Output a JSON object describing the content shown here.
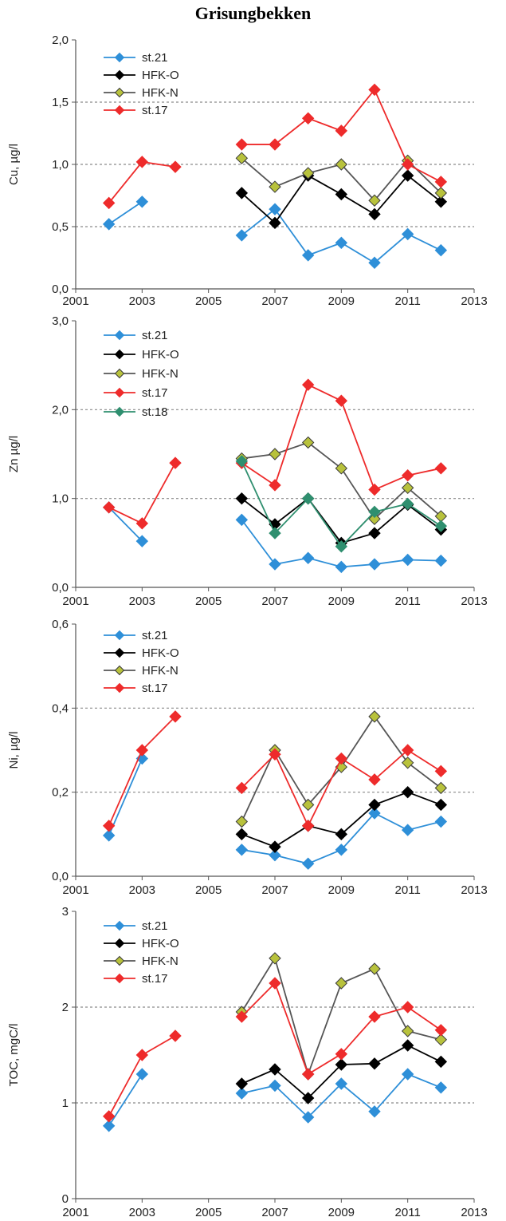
{
  "title": "Grisungbekken",
  "series_styles": {
    "st.21": {
      "color": "#2e8fd8",
      "fill": "#2e8fd8"
    },
    "HFK-O": {
      "color": "#000000",
      "fill": "#000000"
    },
    "HFK-N": {
      "color": "#555555",
      "fill": "#b8c23c"
    },
    "st.17": {
      "color": "#ee2b2b",
      "fill": "#ee2b2b"
    },
    "st.18": {
      "color": "#2f8f6f",
      "fill": "#2f8f6f"
    }
  },
  "chart_data": [
    {
      "type": "line",
      "ylabel": "Cu, µg/l",
      "xlim": [
        2001,
        2013
      ],
      "xticks": [
        2001,
        2003,
        2005,
        2007,
        2009,
        2011,
        2013
      ],
      "ylim": [
        0,
        2
      ],
      "yticks": [
        0,
        0.5,
        1,
        1.5,
        2
      ],
      "yticklabels": [
        "0,0",
        "0,5",
        "1,0",
        "1,5",
        "2,0"
      ],
      "gridlines": [
        0.5,
        1.0,
        1.5
      ],
      "legend": [
        "st.21",
        "HFK-O",
        "HFK-N",
        "st.17"
      ],
      "series": [
        {
          "name": "st.21",
          "x": [
            2002,
            2003,
            2006,
            2007,
            2008,
            2009,
            2010,
            2011,
            2012
          ],
          "y": [
            0.52,
            0.7,
            0.43,
            0.64,
            0.27,
            0.37,
            0.21,
            0.44,
            0.31
          ]
        },
        {
          "name": "HFK-O",
          "x": [
            2006,
            2007,
            2008,
            2009,
            2010,
            2011,
            2012
          ],
          "y": [
            0.77,
            0.53,
            0.91,
            0.76,
            0.6,
            0.91,
            0.7
          ]
        },
        {
          "name": "HFK-N",
          "x": [
            2006,
            2007,
            2008,
            2009,
            2010,
            2011,
            2012
          ],
          "y": [
            1.05,
            0.82,
            0.93,
            1.0,
            0.71,
            1.03,
            0.77
          ]
        },
        {
          "name": "st.17",
          "x": [
            2002,
            2003,
            2004,
            2006,
            2007,
            2008,
            2009,
            2010,
            2011,
            2012
          ],
          "y": [
            0.69,
            1.02,
            0.98,
            1.16,
            1.16,
            1.37,
            1.27,
            1.6,
            1.0,
            0.86
          ]
        }
      ]
    },
    {
      "type": "line",
      "ylabel": "Zn µg/l",
      "xlim": [
        2001,
        2013
      ],
      "xticks": [
        2001,
        2003,
        2005,
        2007,
        2009,
        2011,
        2013
      ],
      "ylim": [
        0,
        3
      ],
      "yticks": [
        0,
        1,
        2,
        3
      ],
      "yticklabels": [
        "0,0",
        "1,0",
        "2,0",
        "3,0"
      ],
      "gridlines": [
        1.0,
        2.0
      ],
      "legend": [
        "st.21",
        "HFK-O",
        "HFK-N",
        "st.17",
        "st.18"
      ],
      "series": [
        {
          "name": "st.21",
          "x": [
            2002,
            2003,
            2006,
            2007,
            2008,
            2009,
            2010,
            2011,
            2012
          ],
          "y": [
            0.9,
            0.52,
            0.76,
            0.26,
            0.33,
            0.23,
            0.26,
            0.31,
            0.3
          ]
        },
        {
          "name": "HFK-O",
          "x": [
            2006,
            2007,
            2008,
            2009,
            2010,
            2011,
            2012
          ],
          "y": [
            1.0,
            0.71,
            1.0,
            0.5,
            0.61,
            0.93,
            0.65
          ]
        },
        {
          "name": "HFK-N",
          "x": [
            2006,
            2007,
            2008,
            2009,
            2010,
            2011,
            2012
          ],
          "y": [
            1.45,
            1.5,
            1.63,
            1.34,
            0.77,
            1.12,
            0.8
          ]
        },
        {
          "name": "st.17",
          "x": [
            2002,
            2003,
            2004,
            2006,
            2007,
            2008,
            2009,
            2010,
            2011,
            2012
          ],
          "y": [
            0.9,
            0.72,
            1.4,
            1.4,
            1.15,
            2.28,
            2.1,
            1.1,
            1.26,
            1.34
          ]
        },
        {
          "name": "st.18",
          "x": [
            2006,
            2007,
            2008,
            2009,
            2010,
            2011,
            2012
          ],
          "y": [
            1.42,
            0.61,
            1.0,
            0.46,
            0.85,
            0.94,
            0.69
          ]
        }
      ]
    },
    {
      "type": "line",
      "ylabel": "Ni, µg/l",
      "xlim": [
        2001,
        2013
      ],
      "xticks": [
        2001,
        2003,
        2005,
        2007,
        2009,
        2011,
        2013
      ],
      "ylim": [
        0,
        0.6
      ],
      "yticks": [
        0,
        0.2,
        0.4,
        0.6
      ],
      "yticklabels": [
        "0,0",
        "0,2",
        "0,4",
        "0,6"
      ],
      "gridlines": [
        0.2,
        0.4
      ],
      "legend": [
        "st.21",
        "HFK-O",
        "HFK-N",
        "st.17"
      ],
      "series": [
        {
          "name": "st.21",
          "x": [
            2002,
            2003,
            2006,
            2007,
            2008,
            2009,
            2010,
            2011,
            2012
          ],
          "y": [
            0.097,
            0.28,
            0.063,
            0.05,
            0.03,
            0.063,
            0.15,
            0.11,
            0.13
          ]
        },
        {
          "name": "HFK-O",
          "x": [
            2006,
            2007,
            2008,
            2009,
            2010,
            2011,
            2012
          ],
          "y": [
            0.1,
            0.07,
            0.12,
            0.1,
            0.17,
            0.2,
            0.17
          ]
        },
        {
          "name": "HFK-N",
          "x": [
            2006,
            2007,
            2008,
            2009,
            2010,
            2011,
            2012
          ],
          "y": [
            0.13,
            0.3,
            0.17,
            0.26,
            0.38,
            0.27,
            0.21
          ]
        },
        {
          "name": "st.17",
          "x": [
            2002,
            2003,
            2004,
            2006,
            2007,
            2008,
            2009,
            2010,
            2011,
            2012
          ],
          "y": [
            0.12,
            0.3,
            0.38,
            0.21,
            0.29,
            0.12,
            0.28,
            0.23,
            0.3,
            0.25
          ]
        }
      ]
    },
    {
      "type": "line",
      "ylabel": "TOC, mgC/l",
      "xlim": [
        2001,
        2013
      ],
      "xticks": [
        2001,
        2003,
        2005,
        2007,
        2009,
        2011,
        2013
      ],
      "ylim": [
        0,
        3
      ],
      "yticks": [
        0,
        1,
        2,
        3
      ],
      "yticklabels": [
        "0",
        "1",
        "2",
        "3"
      ],
      "gridlines": [
        1,
        2
      ],
      "legend": [
        "st.21",
        "HFK-O",
        "HFK-N",
        "st.17"
      ],
      "series": [
        {
          "name": "st.21",
          "x": [
            2002,
            2003,
            2006,
            2007,
            2008,
            2009,
            2010,
            2011,
            2012
          ],
          "y": [
            0.76,
            1.3,
            1.1,
            1.18,
            0.85,
            1.2,
            0.91,
            1.3,
            1.16
          ]
        },
        {
          "name": "HFK-O",
          "x": [
            2006,
            2007,
            2008,
            2009,
            2010,
            2011,
            2012
          ],
          "y": [
            1.2,
            1.35,
            1.05,
            1.4,
            1.41,
            1.6,
            1.43
          ]
        },
        {
          "name": "HFK-N",
          "x": [
            2006,
            2007,
            2008,
            2009,
            2010,
            2011,
            2012
          ],
          "y": [
            1.95,
            2.51,
            1.3,
            2.25,
            2.4,
            1.75,
            1.66
          ]
        },
        {
          "name": "st.17",
          "x": [
            2002,
            2003,
            2004,
            2006,
            2007,
            2008,
            2009,
            2010,
            2011,
            2012
          ],
          "y": [
            0.86,
            1.5,
            1.7,
            1.9,
            2.25,
            1.3,
            1.51,
            1.9,
            2.0,
            1.76
          ]
        }
      ]
    }
  ]
}
